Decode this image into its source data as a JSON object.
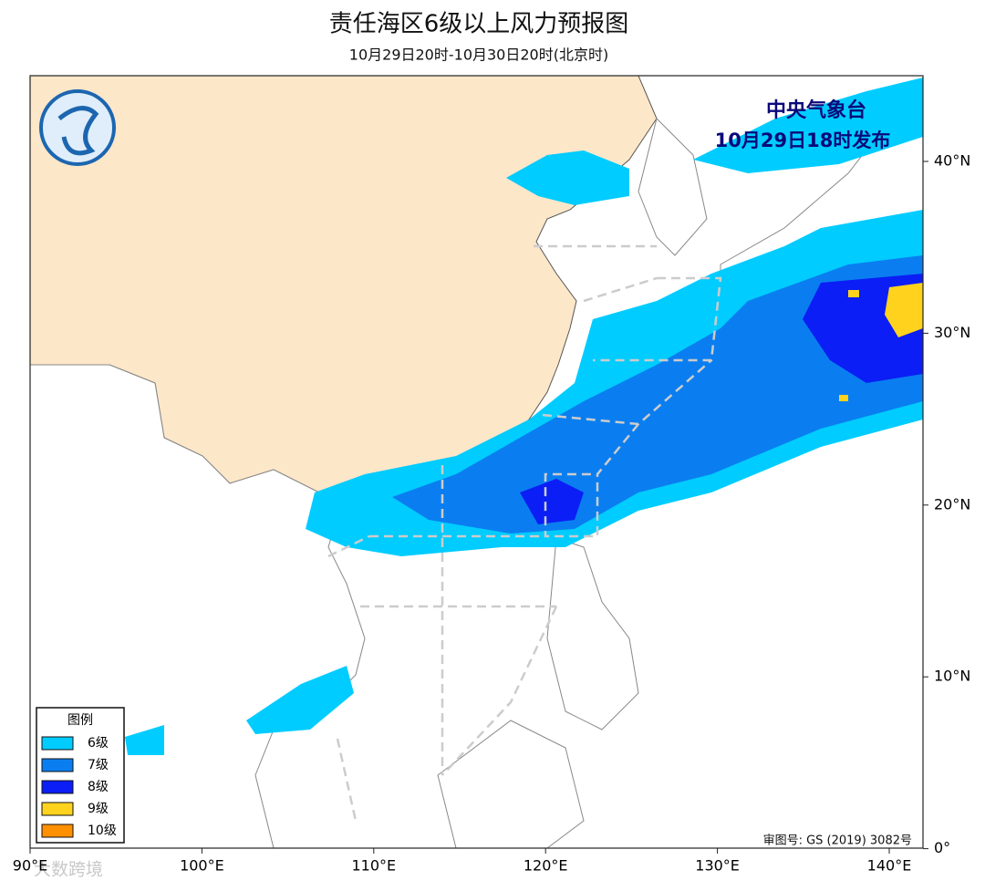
{
  "header": {
    "title": "责任海区6级以上风力预报图",
    "subtitle": "10月29日20时-10月30日20时(北京时)"
  },
  "issuer": {
    "name": "中央气象台",
    "time": "10月29日18时发布"
  },
  "map": {
    "lon_labels": [
      "90°E",
      "100°E",
      "110°E",
      "120°E",
      "130°E",
      "140°E"
    ],
    "lat_labels": [
      "40°N",
      "30°N",
      "20°N",
      "10°N",
      "0°"
    ]
  },
  "legend": {
    "title": "图例",
    "items": [
      {
        "label": "6级",
        "color": "#00ccff"
      },
      {
        "label": "7级",
        "color": "#0a7ef0"
      },
      {
        "label": "8级",
        "color": "#0a1ef5"
      },
      {
        "label": "9级",
        "color": "#ffd21e"
      },
      {
        "label": "10级",
        "color": "#ff9000"
      }
    ]
  },
  "approval": "审图号: GS (2019) 3082号",
  "watermark": "大数跨境"
}
